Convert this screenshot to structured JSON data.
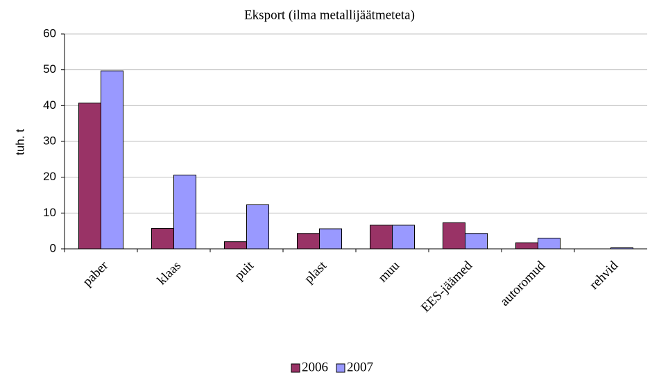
{
  "chart_data": {
    "type": "bar",
    "title": "Eksport (ilma metallijäätmeteta)",
    "y_label": "tuh. t",
    "categories": [
      "paber",
      "klaas",
      "puit",
      "plast",
      "muu",
      "EES-jäämed",
      "autoromud",
      "rehvid"
    ],
    "series": [
      {
        "name": "2006",
        "color": "#993366",
        "values": [
          40.7,
          5.7,
          2.0,
          4.3,
          6.6,
          7.3,
          1.7,
          0
        ]
      },
      {
        "name": "2007",
        "color": "#9999ff",
        "values": [
          49.7,
          20.6,
          12.3,
          5.6,
          6.6,
          4.3,
          3.0,
          0.3
        ]
      }
    ],
    "ylim": [
      0,
      60
    ],
    "yticks": [
      0,
      10,
      20,
      30,
      40,
      50,
      60
    ],
    "grid": true,
    "legend": "bottom"
  }
}
